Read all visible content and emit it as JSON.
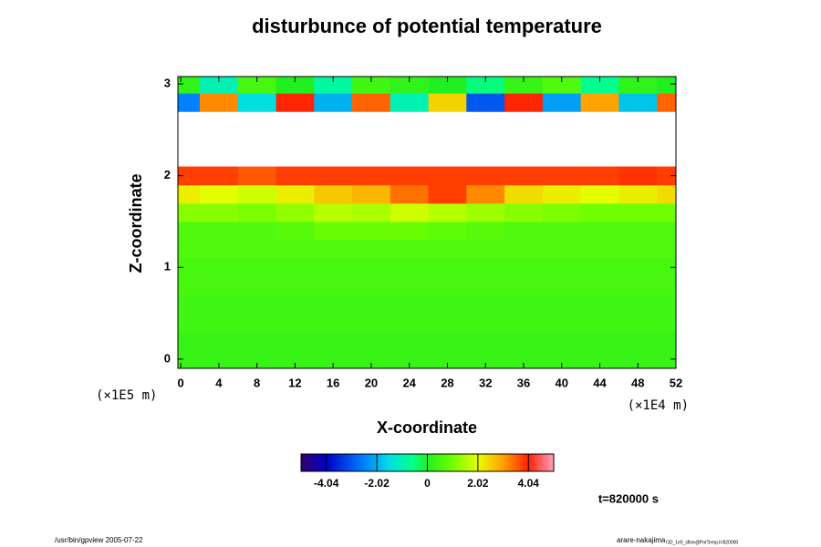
{
  "chart_data": {
    "type": "heatmap",
    "title": "disturbunce of potential temperature",
    "x_label": "X-coordinate",
    "y_label": "Z-coordinate",
    "x_unit": "(×1E4 m)",
    "y_unit": "(×1E5 m)",
    "annotation": "t=820000 s",
    "footer_left": "/usr/bin/gpview 2005-07-22",
    "footer_right": "arare-nakajima",
    "footer_right_small": "OD_1e5_sfine@PotTemp,t=820000",
    "x": [
      0,
      4,
      8,
      12,
      16,
      20,
      24,
      28,
      32,
      36,
      40,
      44,
      48,
      52
    ],
    "z": [
      0,
      0.2,
      0.4,
      0.6,
      0.8,
      1.0,
      1.2,
      1.4,
      1.6,
      1.8,
      2.0,
      2.2,
      2.4,
      2.6,
      2.8,
      3.0
    ],
    "values": [
      [
        0.3,
        0.3,
        0.3,
        0.3,
        0.3,
        0.3,
        0.3,
        0.3,
        0.3,
        0.3,
        0.3,
        0.3,
        0.3,
        0.3
      ],
      [
        0.3,
        0.3,
        0.3,
        0.3,
        0.3,
        0.3,
        0.3,
        0.3,
        0.3,
        0.3,
        0.3,
        0.3,
        0.3,
        0.3
      ],
      [
        0.4,
        0.4,
        0.4,
        0.4,
        0.4,
        0.4,
        0.4,
        0.4,
        0.4,
        0.4,
        0.4,
        0.4,
        0.4,
        0.4
      ],
      [
        0.4,
        0.4,
        0.4,
        0.4,
        0.4,
        0.4,
        0.4,
        0.4,
        0.4,
        0.4,
        0.4,
        0.4,
        0.4,
        0.4
      ],
      [
        0.5,
        0.5,
        0.5,
        0.5,
        0.5,
        0.5,
        0.5,
        0.5,
        0.5,
        0.5,
        0.5,
        0.5,
        0.5,
        0.5
      ],
      [
        0.5,
        0.5,
        0.5,
        0.5,
        0.5,
        0.5,
        0.5,
        0.5,
        0.5,
        0.5,
        0.5,
        0.5,
        0.5,
        0.5
      ],
      [
        0.6,
        0.6,
        0.6,
        0.6,
        0.6,
        0.6,
        0.6,
        0.6,
        0.6,
        0.6,
        0.6,
        0.6,
        0.6,
        0.6
      ],
      [
        0.6,
        0.6,
        0.6,
        0.7,
        0.9,
        0.9,
        0.9,
        0.8,
        0.7,
        0.6,
        0.6,
        0.6,
        0.6,
        0.6
      ],
      [
        1.2,
        1.2,
        1.1,
        1.3,
        1.6,
        1.5,
        1.8,
        1.6,
        1.4,
        1.2,
        1.1,
        1.0,
        1.0,
        1.0
      ],
      [
        2.2,
        2.0,
        1.8,
        2.2,
        2.6,
        2.8,
        3.4,
        3.8,
        3.2,
        2.4,
        2.2,
        2.0,
        2.2,
        2.4
      ],
      [
        3.8,
        3.8,
        3.6,
        3.8,
        3.8,
        3.8,
        3.8,
        3.8,
        3.8,
        3.8,
        3.8,
        3.8,
        3.9,
        3.8
      ],
      [
        null,
        null,
        null,
        null,
        null,
        null,
        null,
        null,
        null,
        null,
        null,
        null,
        null,
        null
      ],
      [
        null,
        null,
        null,
        null,
        null,
        null,
        null,
        null,
        null,
        null,
        null,
        null,
        null,
        null
      ],
      [
        null,
        null,
        null,
        null,
        null,
        null,
        null,
        null,
        null,
        null,
        null,
        null,
        null,
        null
      ],
      [
        -2.5,
        3.2,
        -1.5,
        4,
        -2,
        3.5,
        -1,
        2.5,
        -3,
        4,
        -2.2,
        3,
        -1.8,
        3.5
      ],
      [
        0.2,
        -1,
        0.5,
        0,
        -0.8,
        0.4,
        0.2,
        0,
        -0.5,
        0.3,
        0.6,
        -0.6,
        0.2,
        0
      ]
    ],
    "xlim": [
      -0.3,
      52
    ],
    "ylim": [
      -0.1,
      3.08
    ],
    "xticks": [
      0,
      4,
      8,
      12,
      16,
      20,
      24,
      28,
      32,
      36,
      40,
      44,
      48,
      52
    ],
    "yticks": [
      0,
      1,
      2,
      3
    ],
    "clim": [
      -5.05,
      5.05
    ],
    "cticks": [
      -4.04,
      -2.02,
      0,
      2.02,
      4.04
    ]
  }
}
